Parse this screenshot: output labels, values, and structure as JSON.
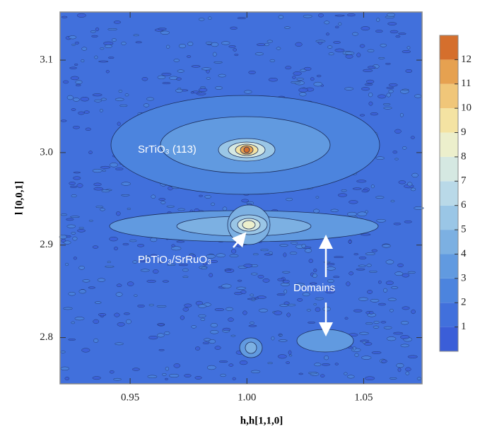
{
  "chart_data": {
    "type": "contour",
    "xlabel": "h,h[1,1,0]",
    "ylabel": "l [0,0,1]",
    "xlim": [
      0.92,
      1.075
    ],
    "ylim": [
      2.75,
      3.152
    ],
    "xticks": [
      {
        "value": 0.95,
        "label": "0.95"
      },
      {
        "value": 1.0,
        "label": "1.00"
      },
      {
        "value": 1.05,
        "label": "1.05"
      }
    ],
    "yticks": [
      {
        "value": 2.8,
        "label": "2.8"
      },
      {
        "value": 2.9,
        "label": "2.9"
      },
      {
        "value": 3.0,
        "label": "3.0"
      },
      {
        "value": 3.1,
        "label": "3.1"
      }
    ],
    "colorbar": {
      "lim": [
        0,
        13
      ],
      "ticks": [
        1,
        2,
        3,
        4,
        5,
        6,
        7,
        8,
        9,
        10,
        11,
        12
      ],
      "colors": [
        "#3b5ed8",
        "#4170dc",
        "#4c84de",
        "#619ae0",
        "#7cb0e2",
        "#9ac6e6",
        "#b9d9e8",
        "#d5e8e2",
        "#ecefcc",
        "#f4e3a2",
        "#f0c679",
        "#e6a150",
        "#d56f2d"
      ]
    },
    "annotations": [
      "SrTiO₃ (113)",
      "PbTiO₃/SrRuO₃",
      "Domains"
    ]
  }
}
